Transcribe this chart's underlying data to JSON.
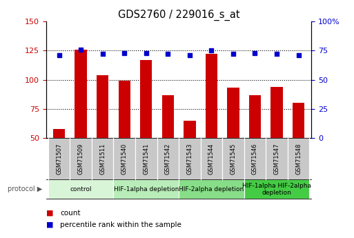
{
  "title": "GDS2760 / 229016_s_at",
  "samples": [
    "GSM71507",
    "GSM71509",
    "GSM71511",
    "GSM71540",
    "GSM71541",
    "GSM71542",
    "GSM71543",
    "GSM71544",
    "GSM71545",
    "GSM71546",
    "GSM71547",
    "GSM71548"
  ],
  "counts": [
    58,
    126,
    104,
    99,
    117,
    87,
    65,
    122,
    93,
    87,
    94,
    80
  ],
  "percentiles": [
    71,
    76,
    72,
    73,
    73,
    72,
    71,
    75,
    72,
    73,
    72,
    71
  ],
  "ylim_left": [
    50,
    150
  ],
  "ylim_right": [
    0,
    100
  ],
  "left_ticks": [
    50,
    75,
    100,
    125,
    150
  ],
  "right_ticks": [
    0,
    25,
    50,
    75,
    100
  ],
  "right_tick_labels": [
    "0",
    "25",
    "50",
    "75",
    "100%"
  ],
  "bar_color": "#cc0000",
  "dot_color": "#0000cc",
  "bg_color": "#ffffff",
  "tick_label_color_left": "#cc0000",
  "tick_label_color_right": "#0000cc",
  "sample_box_color": "#c8c8c8",
  "protocol_groups": [
    {
      "label": "control",
      "start": 0,
      "end": 2,
      "color": "#d8f5d8"
    },
    {
      "label": "HIF-1alpha depletion",
      "start": 3,
      "end": 5,
      "color": "#b8ecb8"
    },
    {
      "label": "HIF-2alpha depletion",
      "start": 6,
      "end": 8,
      "color": "#88dd88"
    },
    {
      "label": "HIF-1alpha HIF-2alpha\ndepletion",
      "start": 9,
      "end": 11,
      "color": "#44cc44"
    }
  ]
}
